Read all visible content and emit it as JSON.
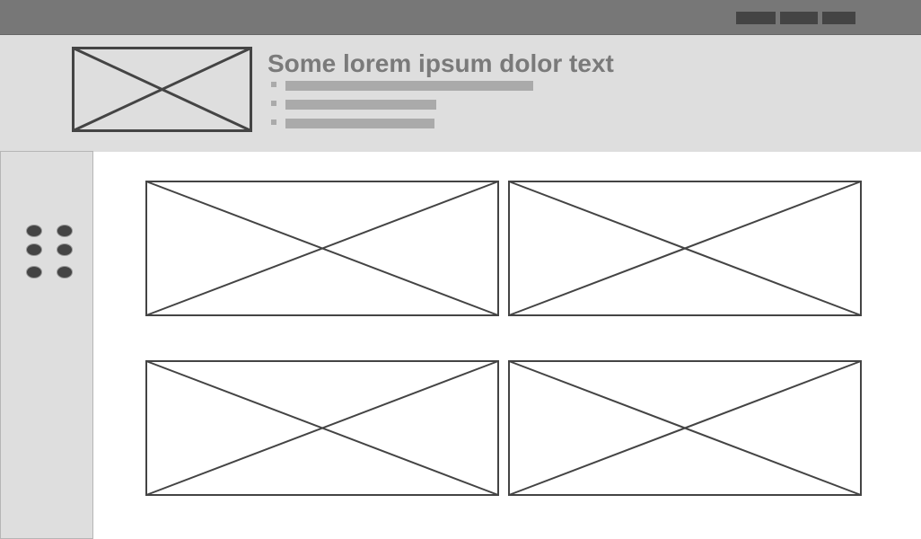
{
  "header": {
    "headline": "Some lorem ipsum dolor text"
  },
  "colors": {
    "topbar": "#777777",
    "panel": "#dedede",
    "placeholder_stroke": "#444444",
    "text_gray": "#7a7a7a",
    "line_gray": "#aaaaaa"
  },
  "icons": {
    "hero": "image-placeholder-icon",
    "tiles": "image-placeholder-icon",
    "sidebar": "drag-handle-dots-icon"
  }
}
